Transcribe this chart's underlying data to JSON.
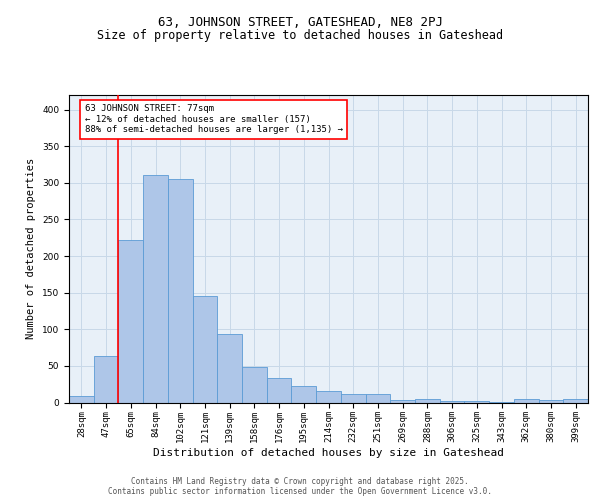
{
  "title_line1": "63, JOHNSON STREET, GATESHEAD, NE8 2PJ",
  "title_line2": "Size of property relative to detached houses in Gateshead",
  "xlabel": "Distribution of detached houses by size in Gateshead",
  "ylabel": "Number of detached properties",
  "categories": [
    "28sqm",
    "47sqm",
    "65sqm",
    "84sqm",
    "102sqm",
    "121sqm",
    "139sqm",
    "158sqm",
    "176sqm",
    "195sqm",
    "214sqm",
    "232sqm",
    "251sqm",
    "269sqm",
    "288sqm",
    "306sqm",
    "325sqm",
    "343sqm",
    "362sqm",
    "380sqm",
    "399sqm"
  ],
  "values": [
    9,
    64,
    222,
    311,
    305,
    145,
    93,
    49,
    33,
    23,
    16,
    12,
    12,
    3,
    5,
    2,
    2,
    1,
    5,
    3,
    5
  ],
  "bar_color": "#aec6e8",
  "bar_edge_color": "#5b9bd5",
  "vline_x": 1.5,
  "vline_color": "red",
  "annotation_text": "63 JOHNSON STREET: 77sqm\n← 12% of detached houses are smaller (157)\n88% of semi-detached houses are larger (1,135) →",
  "annotation_box_color": "white",
  "annotation_box_edge_color": "red",
  "ylim": [
    0,
    420
  ],
  "yticks": [
    0,
    50,
    100,
    150,
    200,
    250,
    300,
    350,
    400
  ],
  "grid_color": "#c8d8e8",
  "background_color": "#e8f0f8",
  "footer_text": "Contains HM Land Registry data © Crown copyright and database right 2025.\nContains public sector information licensed under the Open Government Licence v3.0.",
  "title_fontsize": 9,
  "subtitle_fontsize": 8.5,
  "axis_label_fontsize": 7.5,
  "tick_fontsize": 6.5,
  "annotation_fontsize": 6.5,
  "footer_fontsize": 5.5
}
